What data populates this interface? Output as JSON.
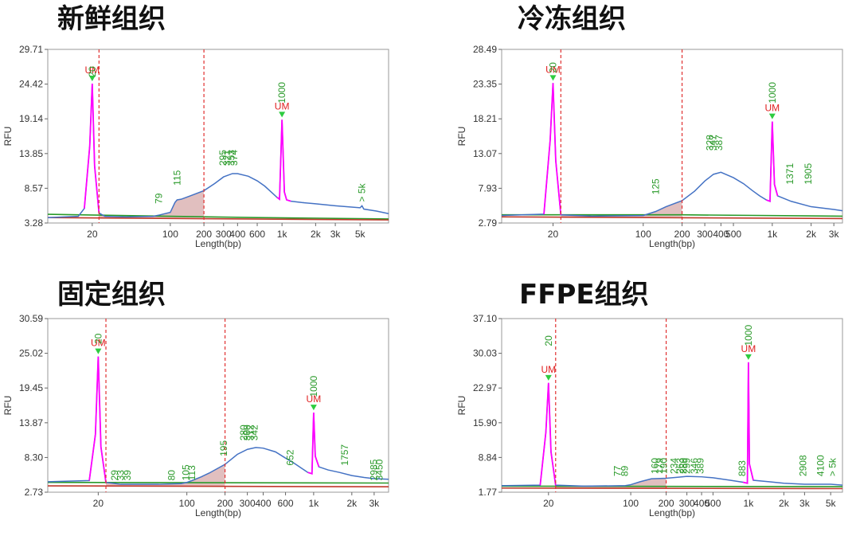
{
  "chart_data": [
    {
      "type": "line",
      "title": "新鲜组织",
      "ylabel": "RFU",
      "xlabel": "Length(bp)",
      "yticks": [
        "29.71",
        "24.42",
        "19.14",
        "13.85",
        "8.57",
        "3.28"
      ],
      "ylim": [
        3.28,
        29.71
      ],
      "xticks": [
        {
          "label": "20",
          "v": 20
        },
        {
          "label": "100",
          "v": 100
        },
        {
          "label": "200",
          "v": 200
        },
        {
          "label": "300",
          "v": 300
        },
        {
          "label": "400",
          "v": 400
        },
        {
          "label": "600",
          "v": 600
        },
        {
          "label": "1k",
          "v": 1000
        },
        {
          "label": "2k",
          "v": 2000
        },
        {
          "label": "3k",
          "v": 3000
        },
        {
          "label": "5k",
          "v": 5000
        }
      ],
      "xlim": [
        8,
        9000
      ],
      "region": [
        23,
        200
      ],
      "markers": [
        {
          "v": 20,
          "label": "UM"
        },
        {
          "v": 1000,
          "label": "UM"
        }
      ],
      "peak_labels": [
        {
          "text": "20",
          "v": 20,
          "y": 25.5
        },
        {
          "text": "79",
          "v": 79,
          "y": 6.2
        },
        {
          "text": "115",
          "v": 115,
          "y": 9.0
        },
        {
          "text": "295",
          "v": 295,
          "y": 12.0
        },
        {
          "text": "321",
          "v": 321,
          "y": 12.0
        },
        {
          "text": "353",
          "v": 353,
          "y": 12.0
        },
        {
          "text": "374",
          "v": 374,
          "y": 12.0
        },
        {
          "text": "1000",
          "v": 1000,
          "y": 21.5
        },
        {
          "text": "> 5k",
          "v": 5200,
          "y": 6.5
        }
      ],
      "series": [
        {
          "name": "trace",
          "color": "#4472c4",
          "x": [
            8,
            15,
            17,
            19,
            20,
            21,
            23,
            26,
            40,
            70,
            80,
            100,
            110,
            115,
            125,
            150,
            200,
            250,
            300,
            360,
            400,
            500,
            600,
            700,
            800,
            900,
            950,
            1000,
            1050,
            1100,
            1200,
            1500,
            2000,
            3000,
            5000,
            5200,
            5400,
            7000,
            9000
          ],
          "y": [
            4.1,
            4.3,
            5.5,
            15,
            24.5,
            12,
            4.8,
            4.3,
            4.2,
            4.3,
            4.5,
            4.9,
            6.4,
            6.8,
            6.9,
            7.4,
            8.2,
            9.3,
            10.3,
            10.8,
            10.8,
            10.4,
            9.7,
            8.9,
            8.0,
            7.2,
            6.9,
            19.0,
            8.0,
            6.8,
            6.6,
            6.4,
            6.2,
            5.9,
            5.6,
            5.9,
            5.4,
            5.1,
            4.7
          ]
        },
        {
          "name": "baseline",
          "color": "#2a9a2a",
          "x": [
            8,
            100,
            600,
            9000
          ],
          "y": [
            4.6,
            4.3,
            4.1,
            3.9
          ]
        },
        {
          "name": "baseline-red",
          "color": "#c0392b",
          "x": [
            8,
            9000
          ],
          "y": [
            4.1,
            3.75
          ]
        }
      ],
      "colors": {
        "marker_peak": "#ff00ff",
        "region_fill": "#c98a8a",
        "cut_line": "#e03030"
      }
    },
    {
      "type": "line",
      "title": "冷冻组织",
      "ylabel": "RFU",
      "xlabel": "Length(bp)",
      "yticks": [
        "28.49",
        "23.35",
        "18.21",
        "13.07",
        "7.93",
        "2.79"
      ],
      "ylim": [
        2.79,
        28.49
      ],
      "xticks": [
        {
          "label": "20",
          "v": 20
        },
        {
          "label": "100",
          "v": 100
        },
        {
          "label": "200",
          "v": 200
        },
        {
          "label": "300",
          "v": 300
        },
        {
          "label": "400",
          "v": 400
        },
        {
          "label": "500",
          "v": 500
        },
        {
          "label": "1k",
          "v": 1000
        },
        {
          "label": "2k",
          "v": 2000
        },
        {
          "label": "3k",
          "v": 3000
        }
      ],
      "xlim": [
        8,
        3500
      ],
      "region": [
        23,
        200
      ],
      "markers": [
        {
          "v": 20,
          "label": "UM"
        },
        {
          "v": 1000,
          "label": "UM"
        }
      ],
      "peak_labels": [
        {
          "text": "20",
          "v": 20,
          "y": 25.0
        },
        {
          "text": "125",
          "v": 125,
          "y": 7.0
        },
        {
          "text": "328",
          "v": 328,
          "y": 13.5
        },
        {
          "text": "347",
          "v": 347,
          "y": 13.5
        },
        {
          "text": "387",
          "v": 387,
          "y": 13.5
        },
        {
          "text": "1000",
          "v": 1000,
          "y": 20.5
        },
        {
          "text": "1371",
          "v": 1371,
          "y": 8.5
        },
        {
          "text": "1905",
          "v": 1905,
          "y": 8.5
        }
      ],
      "series": [
        {
          "name": "trace",
          "color": "#4472c4",
          "x": [
            8,
            17,
            19,
            20,
            21,
            23,
            40,
            100,
            125,
            150,
            200,
            250,
            300,
            350,
            400,
            500,
            600,
            700,
            800,
            900,
            960,
            1000,
            1040,
            1100,
            1400,
            2000,
            3000,
            3500
          ],
          "y": [
            3.9,
            4.1,
            15,
            23.5,
            12,
            4.0,
            3.8,
            3.9,
            4.5,
            5.2,
            6.1,
            7.5,
            9.0,
            10.0,
            10.3,
            9.5,
            8.6,
            7.6,
            6.8,
            6.2,
            6.0,
            17.8,
            8.5,
            6.8,
            6.0,
            5.2,
            4.8,
            4.6
          ]
        },
        {
          "name": "baseline",
          "color": "#2a9a2a",
          "x": [
            8,
            200,
            3500
          ],
          "y": [
            4.0,
            4.0,
            3.8
          ]
        },
        {
          "name": "baseline-red",
          "color": "#c0392b",
          "x": [
            8,
            3500
          ],
          "y": [
            3.7,
            3.45
          ]
        }
      ],
      "colors": {
        "marker_peak": "#ff00ff",
        "region_fill": "#c98a8a",
        "cut_line": "#e03030"
      }
    },
    {
      "type": "line",
      "title": "固定组织",
      "ylabel": "RFU",
      "xlabel": "Length(bp)",
      "yticks": [
        "30.59",
        "25.02",
        "19.45",
        "13.87",
        "8.30",
        "2.73"
      ],
      "ylim": [
        2.73,
        30.59
      ],
      "xticks": [
        {
          "label": "20",
          "v": 20
        },
        {
          "label": "100",
          "v": 100
        },
        {
          "label": "200",
          "v": 200
        },
        {
          "label": "300",
          "v": 300
        },
        {
          "label": "400",
          "v": 400
        },
        {
          "label": "600",
          "v": 600
        },
        {
          "label": "1k",
          "v": 1000
        },
        {
          "label": "2k",
          "v": 2000
        },
        {
          "label": "3k",
          "v": 3000
        }
      ],
      "xlim": [
        8,
        3900
      ],
      "region": [
        23,
        200
      ],
      "markers": [
        {
          "v": 20,
          "label": "UM"
        },
        {
          "v": 1000,
          "label": "UM"
        }
      ],
      "peak_labels": [
        {
          "text": "20",
          "v": 20,
          "y": 26.5
        },
        {
          "text": "29",
          "v": 27,
          "y": 4.6
        },
        {
          "text": "33",
          "v": 30,
          "y": 4.6
        },
        {
          "text": "39",
          "v": 34,
          "y": 4.6
        },
        {
          "text": "80",
          "v": 76,
          "y": 4.6
        },
        {
          "text": "105",
          "v": 98,
          "y": 4.6
        },
        {
          "text": "113",
          "v": 110,
          "y": 4.6
        },
        {
          "text": "195",
          "v": 195,
          "y": 8.5
        },
        {
          "text": "280",
          "v": 280,
          "y": 11.0
        },
        {
          "text": "300",
          "v": 300,
          "y": 11.0
        },
        {
          "text": "312",
          "v": 318,
          "y": 11.0
        },
        {
          "text": "342",
          "v": 342,
          "y": 11.0
        },
        {
          "text": "652",
          "v": 652,
          "y": 7.0
        },
        {
          "text": "1000",
          "v": 1000,
          "y": 18.0
        },
        {
          "text": "1757",
          "v": 1757,
          "y": 7.0
        },
        {
          "text": "2985",
          "v": 2985,
          "y": 4.6
        },
        {
          "text": "3450",
          "v": 3300,
          "y": 4.6
        }
      ],
      "series": [
        {
          "name": "trace",
          "color": "#4472c4",
          "x": [
            8,
            17,
            19,
            20,
            21,
            23,
            30,
            60,
            90,
            100,
            110,
            130,
            150,
            200,
            250,
            300,
            350,
            400,
            500,
            600,
            700,
            800,
            900,
            970,
            1000,
            1030,
            1100,
            1300,
            1600,
            2000,
            2500,
            3000,
            3900
          ],
          "y": [
            4.4,
            4.6,
            12,
            24.5,
            10,
            4.3,
            4.0,
            4.0,
            4.1,
            4.3,
            4.6,
            5.2,
            5.8,
            7.2,
            8.8,
            9.6,
            9.9,
            9.8,
            9.2,
            8.2,
            7.4,
            6.6,
            5.9,
            5.7,
            15.5,
            8.5,
            6.8,
            6.3,
            5.9,
            5.4,
            5.1,
            4.9,
            4.8
          ]
        },
        {
          "name": "baseline",
          "color": "#2a9a2a",
          "x": [
            8,
            3900
          ],
          "y": [
            4.3,
            4.2
          ]
        },
        {
          "name": "baseline-red",
          "color": "#c0392b",
          "x": [
            8,
            3900
          ],
          "y": [
            3.75,
            3.6
          ]
        }
      ],
      "colors": {
        "marker_peak": "#ff00ff",
        "region_fill": "#c98a8a",
        "cut_line": "#e03030"
      }
    },
    {
      "type": "line",
      "title": "FFPE组织",
      "ylabel": "RFU",
      "xlabel": "Length(bp)",
      "yticks": [
        "37.10",
        "30.03",
        "22.97",
        "15.90",
        "8.84",
        "1.77"
      ],
      "ylim": [
        1.77,
        37.1
      ],
      "xticks": [
        {
          "label": "20",
          "v": 20
        },
        {
          "label": "100",
          "v": 100
        },
        {
          "label": "200",
          "v": 200
        },
        {
          "label": "300",
          "v": 300
        },
        {
          "label": "400",
          "v": 400
        },
        {
          "label": "500",
          "v": 500
        },
        {
          "label": "1k",
          "v": 1000
        },
        {
          "label": "2k",
          "v": 2000
        },
        {
          "label": "3k",
          "v": 3000
        },
        {
          "label": "5k",
          "v": 5000
        }
      ],
      "xlim": [
        8,
        6300
      ],
      "region": [
        23,
        200
      ],
      "markers": [
        {
          "v": 20,
          "label": "UM"
        },
        {
          "v": 1000,
          "label": "UM"
        }
      ],
      "peak_labels": [
        {
          "text": "20",
          "v": 20,
          "y": 31.5
        },
        {
          "text": "77",
          "v": 77,
          "y": 5.0
        },
        {
          "text": "89",
          "v": 89,
          "y": 5.0
        },
        {
          "text": "160",
          "v": 160,
          "y": 5.5
        },
        {
          "text": "179",
          "v": 175,
          "y": 5.5
        },
        {
          "text": "190",
          "v": 190,
          "y": 5.5
        },
        {
          "text": "234",
          "v": 234,
          "y": 5.5
        },
        {
          "text": "263",
          "v": 263,
          "y": 5.5
        },
        {
          "text": "280",
          "v": 280,
          "y": 5.5
        },
        {
          "text": "299",
          "v": 299,
          "y": 5.5
        },
        {
          "text": "346",
          "v": 346,
          "y": 5.5
        },
        {
          "text": "389",
          "v": 389,
          "y": 5.5
        },
        {
          "text": "883",
          "v": 883,
          "y": 5.0
        },
        {
          "text": "1000",
          "v": 1000,
          "y": 31.5
        },
        {
          "text": "2908",
          "v": 2908,
          "y": 5.0
        },
        {
          "text": "4100",
          "v": 4100,
          "y": 5.0
        },
        {
          "text": "> 5k",
          "v": 5200,
          "y": 5.0
        }
      ],
      "series": [
        {
          "name": "trace",
          "color": "#4472c4",
          "x": [
            8,
            17,
            19,
            20,
            21,
            23,
            40,
            90,
            100,
            120,
            150,
            200,
            250,
            300,
            400,
            500,
            700,
            900,
            980,
            1000,
            1020,
            1100,
            1500,
            2000,
            3000,
            5000,
            6300
          ],
          "y": [
            3.1,
            3.2,
            14,
            24.0,
            10,
            3.2,
            3.0,
            3.1,
            3.3,
            3.9,
            4.5,
            4.6,
            4.8,
            5.0,
            4.9,
            4.7,
            4.2,
            3.8,
            3.6,
            28.2,
            7.5,
            4.2,
            3.9,
            3.6,
            3.4,
            3.4,
            3.2
          ]
        },
        {
          "name": "baseline",
          "color": "#2a9a2a",
          "x": [
            8,
            6300
          ],
          "y": [
            3.0,
            2.9
          ]
        },
        {
          "name": "baseline-red",
          "color": "#c0392b",
          "x": [
            8,
            6300
          ],
          "y": [
            2.6,
            2.5
          ]
        }
      ],
      "colors": {
        "marker_peak": "#ff00ff",
        "region_fill": "#c98a8a",
        "cut_line": "#e03030"
      }
    }
  ]
}
